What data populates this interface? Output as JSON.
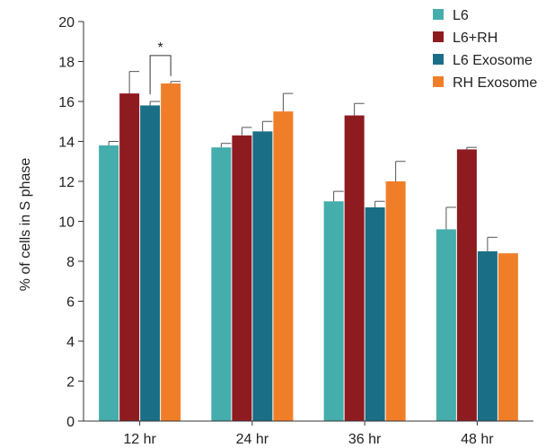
{
  "chart_data": {
    "type": "bar",
    "title": "",
    "xlabel": "",
    "ylabel": "% of cells in S phase",
    "ylim": [
      0,
      20
    ],
    "yticks": [
      0,
      2,
      4,
      6,
      8,
      10,
      12,
      14,
      16,
      18,
      20
    ],
    "grid": false,
    "legend_position": "top-right",
    "categories": [
      "12 hr",
      "24 hr",
      "36 hr",
      "48 hr"
    ],
    "series": [
      {
        "name": "L6",
        "color": "#45ADAB",
        "values": [
          13.8,
          13.7,
          11.0,
          9.6
        ],
        "errors": [
          0.2,
          0.2,
          0.5,
          1.1
        ]
      },
      {
        "name": "L6+RH",
        "color": "#8E1B20",
        "values": [
          16.4,
          14.3,
          15.3,
          13.6
        ],
        "errors": [
          1.1,
          0.4,
          0.6,
          0.1
        ]
      },
      {
        "name": "L6 Exosome",
        "color": "#1A6E86",
        "values": [
          15.8,
          14.5,
          10.7,
          8.5
        ],
        "errors": [
          0.2,
          0.5,
          0.3,
          0.7
        ]
      },
      {
        "name": "RH Exosome",
        "color": "#F07E29",
        "values": [
          16.9,
          15.5,
          12.0,
          8.4
        ],
        "errors": [
          0.1,
          0.9,
          1.0,
          0.0
        ]
      }
    ],
    "annotations": [
      {
        "text": "*",
        "category": "12 hr",
        "between_series": [
          "L6 Exosome",
          "RH Exosome"
        ]
      }
    ]
  }
}
